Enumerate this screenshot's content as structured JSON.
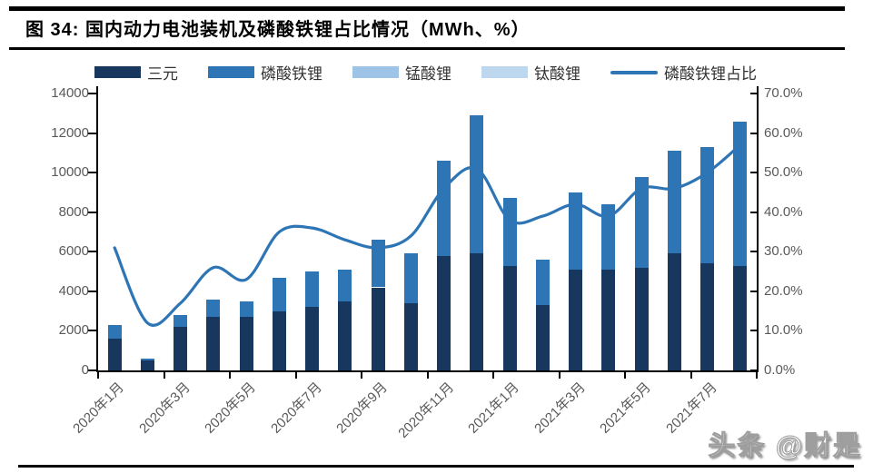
{
  "header": {
    "title": "图 34:  国内动力电池装机及磷酸铁锂占比情况（MWh、%）"
  },
  "watermark": {
    "text": "头条 @财是"
  },
  "colors": {
    "sanyuan": "#17375E",
    "lfp": "#2E75B6",
    "mn": "#9DC3E6",
    "ti": "#BDD7EE",
    "line": "#2E75B6",
    "axis": "#000000",
    "tick_label": "#595959"
  },
  "chart_data": {
    "type": "bar",
    "subtype": "stacked-bar-with-line",
    "title": "国内动力电池装机及磷酸铁锂占比情况",
    "units": {
      "left": "MWh",
      "right": "%"
    },
    "categories": [
      "2020年1月",
      "2020年2月",
      "2020年3月",
      "2020年4月",
      "2020年5月",
      "2020年6月",
      "2020年7月",
      "2020年8月",
      "2020年9月",
      "2020年10月",
      "2020年11月",
      "2020年12月",
      "2021年1月",
      "2021年2月",
      "2021年3月",
      "2021年4月",
      "2021年5月",
      "2021年6月",
      "2021年7月",
      "2021年8月"
    ],
    "series": [
      {
        "name": "三元",
        "type": "bar",
        "axis": "left",
        "color": "#17375E",
        "values": [
          1600,
          500,
          2200,
          2700,
          2700,
          3000,
          3200,
          3500,
          4200,
          3400,
          5800,
          5900,
          5300,
          3300,
          5100,
          5100,
          5200,
          5900,
          5400,
          5300
        ]
      },
      {
        "name": "磷酸铁锂",
        "type": "bar",
        "axis": "left",
        "color": "#2E75B6",
        "values": [
          700,
          100,
          600,
          900,
          800,
          1700,
          1800,
          1600,
          2400,
          2500,
          4800,
          7000,
          3400,
          2300,
          3900,
          3300,
          4600,
          5200,
          5900,
          7300
        ]
      },
      {
        "name": "锰酸锂",
        "type": "bar",
        "axis": "left",
        "color": "#9DC3E6",
        "values": [
          0,
          0,
          0,
          0,
          0,
          0,
          0,
          0,
          0,
          0,
          0,
          0,
          0,
          0,
          0,
          0,
          0,
          0,
          0,
          0
        ]
      },
      {
        "name": "钛酸锂",
        "type": "bar",
        "axis": "left",
        "color": "#BDD7EE",
        "values": [
          0,
          0,
          0,
          0,
          0,
          0,
          0,
          0,
          0,
          0,
          0,
          0,
          0,
          0,
          0,
          0,
          0,
          0,
          0,
          0
        ]
      },
      {
        "name": "磷酸铁锂占比",
        "type": "line",
        "axis": "right",
        "color": "#2E75B6",
        "values": [
          31,
          12,
          17,
          26,
          23,
          35,
          36,
          33,
          31,
          34,
          46,
          51,
          38,
          39,
          42,
          39,
          46,
          46,
          50,
          57
        ]
      }
    ],
    "stacked": true,
    "grid": false,
    "legend_position": "top",
    "left_axis": {
      "range": [
        0,
        14000
      ],
      "tick_labels": [
        "0",
        "2000",
        "4000",
        "6000",
        "8000",
        "10000",
        "12000",
        "14000"
      ]
    },
    "right_axis": {
      "range": [
        0,
        70
      ],
      "tick_labels": [
        "0.0%",
        "10.0%",
        "20.0%",
        "30.0%",
        "40.0%",
        "50.0%",
        "60.0%",
        "70.0%"
      ]
    },
    "x_tick_labels": [
      "2020年1月",
      "2020年3月",
      "2020年5月",
      "2020年7月",
      "2020年9月",
      "2020年11月",
      "2021年1月",
      "2021年3月",
      "2021年5月",
      "2021年7月"
    ]
  }
}
